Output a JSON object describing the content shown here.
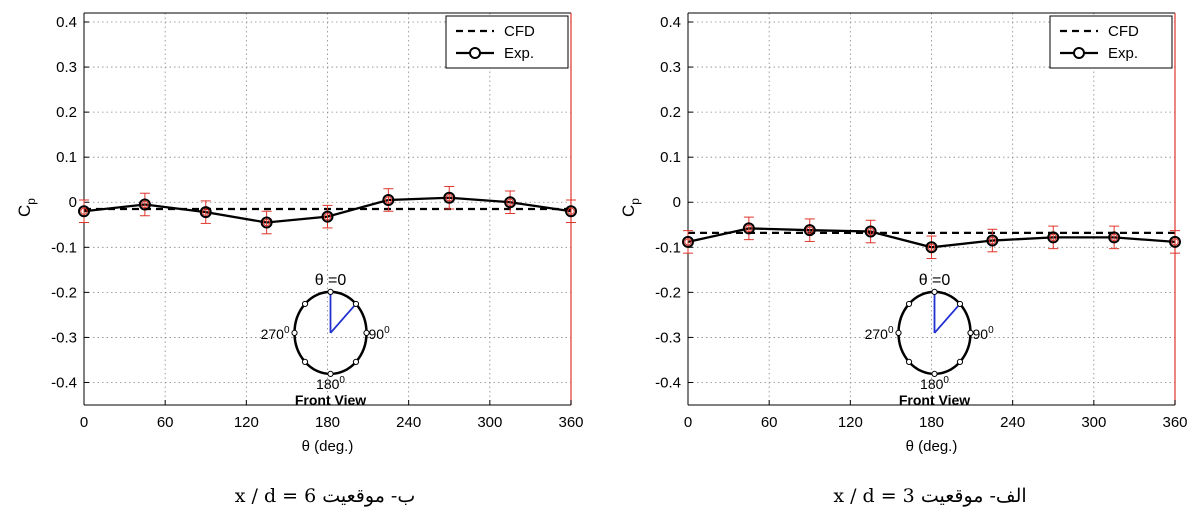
{
  "chart_data": [
    {
      "type": "line",
      "ylabel_main": "C",
      "ylabel_sub": "p",
      "xlabel": "θ (deg.)",
      "xlim": [
        0,
        360
      ],
      "ylim": [
        -0.45,
        0.42
      ],
      "xticks": [
        0,
        60,
        120,
        180,
        240,
        300,
        360
      ],
      "yticks": [
        -0.4,
        -0.3,
        -0.2,
        -0.1,
        0,
        0.1,
        0.2,
        0.3,
        0.4
      ],
      "ytick_labels": [
        "-0.4",
        "-0.3",
        "-0.2",
        "-0.1",
        "0",
        "0.1",
        "0.2",
        "0.3",
        "0.4"
      ],
      "xtick_labels": [
        "0",
        "60",
        "120",
        "180",
        "240",
        "300",
        "360"
      ],
      "grid": true,
      "legend": {
        "position": "top-right",
        "entries": [
          "CFD",
          "Exp."
        ]
      },
      "series": [
        {
          "name": "CFD",
          "style": "dashed",
          "x": [
            0,
            360
          ],
          "y": [
            -0.015,
            -0.015
          ]
        },
        {
          "name": "Exp.",
          "style": "solid-circle",
          "x": [
            0,
            45,
            90,
            135,
            180,
            225,
            270,
            315,
            360
          ],
          "y": [
            -0.02,
            -0.005,
            -0.022,
            -0.045,
            -0.032,
            0.005,
            0.01,
            0.0,
            -0.02
          ],
          "error": 0.025
        }
      ],
      "inset": {
        "top_label": "θ =0",
        "left_label": "270",
        "right_label": "90",
        "bottom_label": "180",
        "degree_mark": "0",
        "caption": "Front View"
      },
      "caption_text": "x / d = 6  ب- موقعیت"
    },
    {
      "type": "line",
      "ylabel_main": "C",
      "ylabel_sub": "p",
      "xlabel": "θ (deg.)",
      "xlim": [
        0,
        360
      ],
      "ylim": [
        -0.45,
        0.42
      ],
      "xticks": [
        0,
        60,
        120,
        180,
        240,
        300,
        360
      ],
      "yticks": [
        -0.4,
        -0.3,
        -0.2,
        -0.1,
        0,
        0.1,
        0.2,
        0.3,
        0.4
      ],
      "ytick_labels": [
        "-0.4",
        "-0.3",
        "-0.2",
        "-0.1",
        "0",
        "0.1",
        "0.2",
        "0.3",
        "0.4"
      ],
      "xtick_labels": [
        "0",
        "60",
        "120",
        "180",
        "240",
        "300",
        "360"
      ],
      "grid": true,
      "legend": {
        "position": "top-right",
        "entries": [
          "CFD",
          "Exp."
        ]
      },
      "series": [
        {
          "name": "CFD",
          "style": "dashed",
          "x": [
            0,
            360
          ],
          "y": [
            -0.068,
            -0.068
          ]
        },
        {
          "name": "Exp.",
          "style": "solid-circle",
          "x": [
            0,
            45,
            90,
            135,
            180,
            225,
            270,
            315,
            360
          ],
          "y": [
            -0.088,
            -0.058,
            -0.062,
            -0.065,
            -0.1,
            -0.085,
            -0.078,
            -0.078,
            -0.088
          ],
          "error": 0.025
        }
      ],
      "inset": {
        "top_label": "θ =0",
        "left_label": "270",
        "right_label": "90",
        "bottom_label": "180",
        "degree_mark": "0",
        "caption": "Front View"
      },
      "caption_text": "x / d = 3  الف- موقعیت"
    }
  ]
}
